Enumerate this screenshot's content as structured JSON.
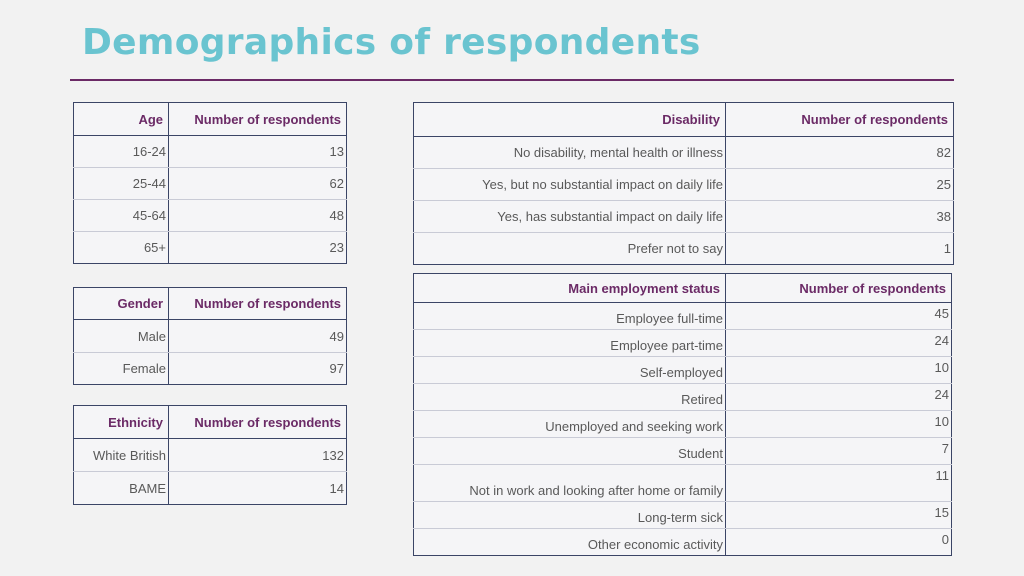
{
  "title": "Demographics of respondents",
  "age": {
    "header": [
      "Age",
      "Number of respondents"
    ],
    "rows": [
      [
        "16-24",
        "13"
      ],
      [
        "25-44",
        "62"
      ],
      [
        "45-64",
        "48"
      ],
      [
        "65+",
        "23"
      ]
    ]
  },
  "gender": {
    "header": [
      "Gender",
      "Number of respondents"
    ],
    "rows": [
      [
        "Male",
        "49"
      ],
      [
        "Female",
        "97"
      ]
    ]
  },
  "ethnicity": {
    "header": [
      "Ethnicity",
      "Number of respondents"
    ],
    "rows": [
      [
        "White British",
        "132"
      ],
      [
        "BAME",
        "14"
      ]
    ]
  },
  "disability": {
    "header": [
      "Disability",
      "Number of respondents"
    ],
    "rows": [
      [
        "No disability, mental health or illness",
        "82"
      ],
      [
        "Yes, but no substantial impact on daily life",
        "25"
      ],
      [
        "Yes, has substantial impact on daily life",
        "38"
      ],
      [
        "Prefer not to say",
        "1"
      ]
    ]
  },
  "employment": {
    "header": [
      "Main employment status",
      "Number of respondents"
    ],
    "rows": [
      [
        "Employee full-time",
        "45"
      ],
      [
        "Employee part-time",
        "24"
      ],
      [
        "Self-employed",
        "10"
      ],
      [
        "Retired",
        "24"
      ],
      [
        "Unemployed and seeking work",
        "10"
      ],
      [
        "Student",
        "7"
      ],
      [
        "Not in work and looking after home or family",
        "11"
      ],
      [
        "Long-term sick",
        "15"
      ],
      [
        "Other economic activity",
        "0"
      ]
    ]
  }
}
